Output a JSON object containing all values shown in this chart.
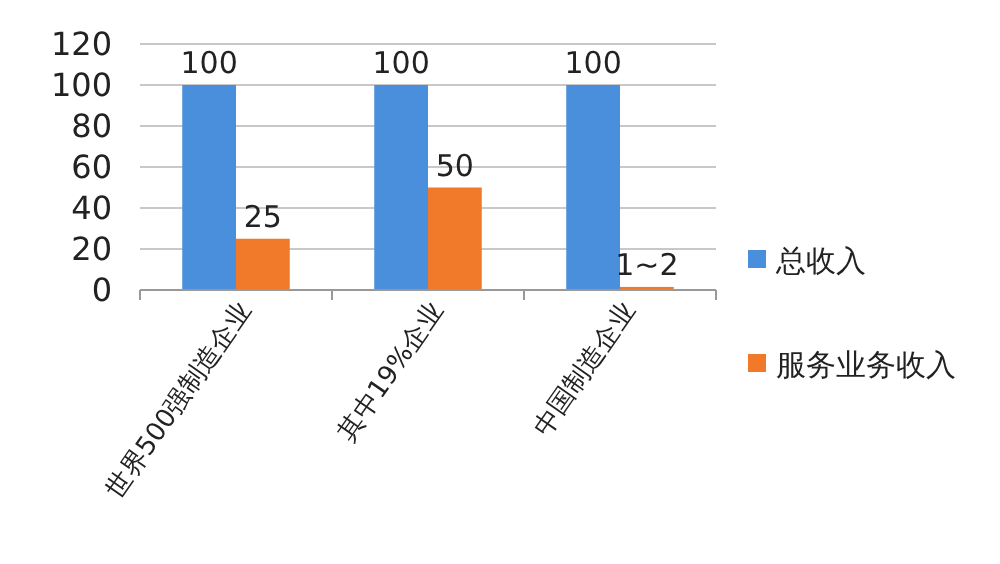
{
  "chart_data": {
    "type": "bar",
    "categories": [
      "世界500强制造企业",
      "其中19%企业",
      "中国制造企业"
    ],
    "series": [
      {
        "name": "总收入",
        "color": "#4a8fdb",
        "values": [
          100,
          100,
          100
        ],
        "value_labels": [
          "100",
          "100",
          "100"
        ]
      },
      {
        "name": "服务业务收入",
        "color": "#f07a2a",
        "values": [
          25,
          50,
          1.5
        ],
        "value_labels": [
          "25",
          "50",
          "1~2"
        ]
      }
    ],
    "ylim": [
      0,
      120
    ],
    "yticks": [
      0,
      20,
      40,
      60,
      80,
      100,
      120
    ],
    "grid": "y",
    "legend": "right"
  }
}
